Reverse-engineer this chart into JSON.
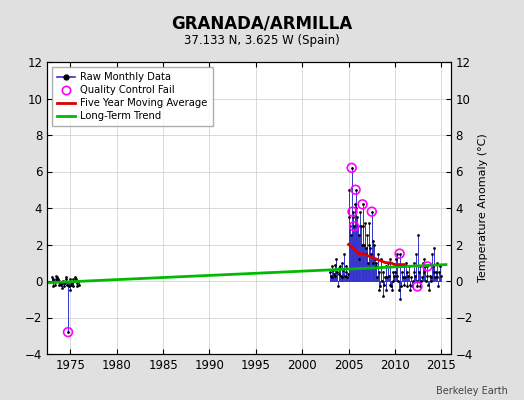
{
  "title": "GRANADA/ARMILLA",
  "subtitle": "37.133 N, 3.625 W (Spain)",
  "ylabel_right": "Temperature Anomaly (°C)",
  "watermark": "Berkeley Earth",
  "xlim": [
    1972.5,
    2016
  ],
  "ylim": [
    -4,
    12
  ],
  "yticks": [
    -4,
    -2,
    0,
    2,
    4,
    6,
    8,
    10,
    12
  ],
  "xticks": [
    1975,
    1980,
    1985,
    1990,
    1995,
    2000,
    2005,
    2010,
    2015
  ],
  "background_color": "#e0e0e0",
  "plot_bg_color": "#ffffff",
  "raw_data_years": [
    1973.0,
    1973.08,
    1973.17,
    1973.25,
    1973.33,
    1973.42,
    1973.5,
    1973.58,
    1973.67,
    1973.75,
    1973.83,
    1973.92,
    1974.0,
    1974.08,
    1974.17,
    1974.25,
    1974.33,
    1974.42,
    1974.5,
    1974.58,
    1974.67,
    1974.75,
    1974.83,
    1974.92,
    1975.0,
    1975.08,
    1975.17,
    1975.25,
    1975.33,
    1975.42,
    1975.5,
    1975.58,
    1975.67,
    1975.75,
    1975.83,
    1975.92,
    2003.0,
    2003.08,
    2003.17,
    2003.25,
    2003.33,
    2003.42,
    2003.5,
    2003.58,
    2003.67,
    2003.75,
    2003.83,
    2003.92,
    2004.0,
    2004.08,
    2004.17,
    2004.25,
    2004.33,
    2004.42,
    2004.5,
    2004.58,
    2004.67,
    2004.75,
    2004.83,
    2004.92,
    2005.0,
    2005.08,
    2005.17,
    2005.25,
    2005.33,
    2005.42,
    2005.5,
    2005.58,
    2005.67,
    2005.75,
    2005.83,
    2005.92,
    2006.0,
    2006.08,
    2006.17,
    2006.25,
    2006.33,
    2006.42,
    2006.5,
    2006.58,
    2006.67,
    2006.75,
    2006.83,
    2006.92,
    2007.0,
    2007.08,
    2007.17,
    2007.25,
    2007.33,
    2007.42,
    2007.5,
    2007.58,
    2007.67,
    2007.75,
    2007.83,
    2007.92,
    2008.0,
    2008.08,
    2008.17,
    2008.25,
    2008.33,
    2008.42,
    2008.5,
    2008.58,
    2008.67,
    2008.75,
    2008.83,
    2008.92,
    2009.0,
    2009.08,
    2009.17,
    2009.25,
    2009.33,
    2009.42,
    2009.5,
    2009.58,
    2009.67,
    2009.75,
    2009.83,
    2009.92,
    2010.0,
    2010.08,
    2010.17,
    2010.25,
    2010.33,
    2010.42,
    2010.5,
    2010.58,
    2010.67,
    2010.75,
    2010.83,
    2010.92,
    2011.0,
    2011.08,
    2011.17,
    2011.25,
    2011.33,
    2011.42,
    2011.5,
    2011.58,
    2011.67,
    2011.75,
    2011.83,
    2011.92,
    2012.0,
    2012.08,
    2012.17,
    2012.25,
    2012.33,
    2012.42,
    2012.5,
    2012.58,
    2012.67,
    2012.75,
    2012.83,
    2012.92,
    2013.0,
    2013.08,
    2013.17,
    2013.25,
    2013.33,
    2013.42,
    2013.5,
    2013.58,
    2013.67,
    2013.75,
    2013.83,
    2013.92,
    2014.0,
    2014.08,
    2014.17,
    2014.25,
    2014.33,
    2014.42,
    2014.5,
    2014.58,
    2014.67,
    2014.75,
    2014.83,
    2014.92
  ],
  "raw_data_vals": [
    0.2,
    -0.3,
    0.1,
    0.0,
    -0.2,
    0.1,
    0.3,
    0.2,
    0.1,
    -0.2,
    0.0,
    -0.1,
    -0.2,
    -0.4,
    0.0,
    -0.1,
    -0.3,
    -0.1,
    0.1,
    0.2,
    -0.2,
    -2.8,
    -0.3,
    -0.5,
    0.1,
    -0.2,
    -0.1,
    0.1,
    -0.3,
    0.0,
    0.2,
    0.1,
    -0.1,
    -0.3,
    0.0,
    -0.2,
    0.5,
    0.3,
    0.8,
    0.2,
    0.6,
    0.4,
    0.3,
    0.9,
    1.2,
    0.5,
    -0.3,
    0.7,
    0.4,
    0.8,
    0.3,
    1.0,
    0.2,
    0.6,
    1.5,
    0.3,
    0.8,
    0.5,
    0.2,
    0.4,
    3.5,
    5.0,
    3.0,
    2.5,
    6.2,
    3.8,
    3.5,
    3.0,
    4.2,
    5.0,
    4.0,
    3.5,
    3.0,
    2.5,
    1.2,
    3.8,
    3.0,
    2.0,
    4.2,
    3.0,
    2.0,
    3.2,
    1.5,
    1.8,
    2.5,
    1.0,
    2.0,
    3.2,
    1.8,
    1.5,
    3.8,
    2.2,
    1.0,
    2.0,
    1.2,
    1.0,
    0.8,
    0.2,
    1.5,
    -0.5,
    0.5,
    -0.3,
    1.2,
    0.0,
    -0.8,
    0.5,
    -0.2,
    0.2,
    -0.5,
    0.8,
    0.2,
    1.0,
    0.3,
    -0.2,
    1.2,
    -0.3,
    -0.5,
    0.5,
    0.0,
    0.3,
    0.5,
    1.2,
    0.3,
    1.5,
    0.0,
    -0.5,
    1.5,
    -1.0,
    -0.3,
    0.5,
    0.2,
    -0.2,
    0.8,
    0.2,
    1.0,
    0.5,
    -0.3,
    0.3,
    0.8,
    -0.2,
    -0.5,
    0.2,
    -0.3,
    0.0,
    0.5,
    1.0,
    0.3,
    1.5,
    0.0,
    -0.3,
    2.5,
    0.5,
    -0.3,
    0.8,
    0.0,
    0.2,
    1.0,
    0.5,
    1.2,
    0.8,
    0.0,
    0.3,
    0.8,
    -0.2,
    -0.5,
    0.3,
    0.0,
    0.2,
    1.5,
    0.8,
    1.8,
    0.5,
    0.2,
    0.5,
    1.0,
    0.2,
    -0.3,
    0.5,
    0.8,
    0.3
  ],
  "qc_fail_years": [
    1974.75,
    2005.33,
    2005.42,
    2005.58,
    2005.75,
    2006.5,
    2007.5,
    2010.5,
    2012.42,
    2013.5
  ],
  "qc_fail_vals": [
    -2.8,
    6.2,
    3.8,
    3.0,
    5.0,
    4.2,
    3.8,
    1.5,
    -0.3,
    0.8
  ],
  "moving_avg_years": [
    2005.0,
    2005.5,
    2006.0,
    2006.5,
    2007.0,
    2007.5,
    2008.0,
    2008.5,
    2009.0,
    2009.5,
    2010.0,
    2010.5,
    2011.0
  ],
  "moving_avg_vals": [
    2.0,
    1.8,
    1.5,
    1.5,
    1.4,
    1.3,
    1.2,
    1.1,
    1.0,
    1.0,
    0.9,
    0.9,
    0.9
  ],
  "trend_years": [
    1972.5,
    2015.5
  ],
  "trend_vals": [
    -0.1,
    0.9
  ],
  "colors": {
    "raw_line": "#3333cc",
    "raw_marker": "#000000",
    "qc_fail": "#ff00ff",
    "moving_avg": "#dd0000",
    "trend": "#00bb00"
  }
}
